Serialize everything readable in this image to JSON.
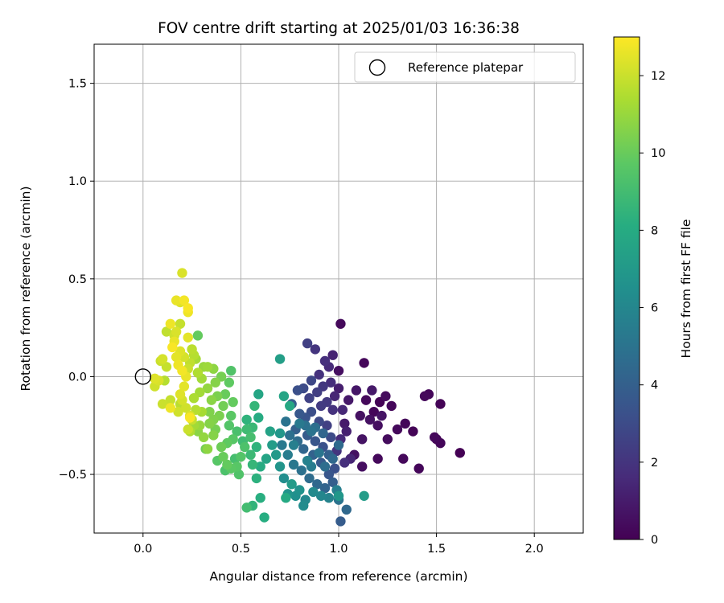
{
  "chart_data": {
    "type": "scatter",
    "title": "FOV centre drift starting at 2025/01/03 16:36:38",
    "xlabel": "Angular distance from reference (arcmin)",
    "ylabel": "Rotation from reference (arcmin)",
    "xlim": [
      -0.25,
      2.25
    ],
    "ylim": [
      -0.8,
      1.7
    ],
    "xticks": [
      "0.0",
      "0.5",
      "1.0",
      "1.5",
      "2.0"
    ],
    "xtick_values": [
      0,
      0.5,
      1.0,
      1.5,
      2.0
    ],
    "yticks": [
      "−0.5",
      "0.0",
      "0.5",
      "1.0",
      "1.5"
    ],
    "ytick_values": [
      -0.5,
      0,
      0.5,
      1.0,
      1.5
    ],
    "grid": true,
    "legend": {
      "placement": "upper-right",
      "entries": [
        {
          "label": "Reference platepar",
          "marker": "open-circle",
          "x": 0,
          "y": 0
        }
      ]
    },
    "colorbar": {
      "label": "Hours from first FF file",
      "colormap": "viridis",
      "range": [
        0,
        13
      ],
      "ticks": [
        "0",
        "2",
        "4",
        "6",
        "8",
        "10",
        "12"
      ],
      "tick_values": [
        0,
        2,
        4,
        6,
        8,
        10,
        12
      ]
    },
    "points_note_colors": "c = hours from first FF file",
    "points": [
      {
        "x": 1.01,
        "y": 0.27,
        "c": 0.3
      },
      {
        "x": 1.13,
        "y": 0.07,
        "c": 0.2
      },
      {
        "x": 1.0,
        "y": 0.03,
        "c": 0.5
      },
      {
        "x": 1.14,
        "y": -0.12,
        "c": 0.3
      },
      {
        "x": 1.18,
        "y": -0.18,
        "c": 0.2
      },
      {
        "x": 1.21,
        "y": -0.13,
        "c": 0.1
      },
      {
        "x": 1.24,
        "y": -0.1,
        "c": 0.4
      },
      {
        "x": 1.27,
        "y": -0.15,
        "c": 0.2
      },
      {
        "x": 1.3,
        "y": -0.27,
        "c": 0.3
      },
      {
        "x": 1.34,
        "y": -0.24,
        "c": 0.2
      },
      {
        "x": 1.38,
        "y": -0.28,
        "c": 0.1
      },
      {
        "x": 1.44,
        "y": -0.1,
        "c": 0.3
      },
      {
        "x": 1.46,
        "y": -0.09,
        "c": 0.2
      },
      {
        "x": 1.49,
        "y": -0.31,
        "c": 0.3
      },
      {
        "x": 1.5,
        "y": -0.32,
        "c": 0.1
      },
      {
        "x": 1.52,
        "y": -0.34,
        "c": 0.2
      },
      {
        "x": 1.52,
        "y": -0.14,
        "c": 0.1
      },
      {
        "x": 1.62,
        "y": -0.39,
        "c": 0.0
      },
      {
        "x": 1.41,
        "y": -0.47,
        "c": 0.2
      },
      {
        "x": 1.33,
        "y": -0.42,
        "c": 0.3
      },
      {
        "x": 1.25,
        "y": -0.32,
        "c": 0.4
      },
      {
        "x": 1.2,
        "y": -0.25,
        "c": 0.5
      },
      {
        "x": 1.16,
        "y": -0.22,
        "c": 0.6
      },
      {
        "x": 1.12,
        "y": -0.32,
        "c": 0.7
      },
      {
        "x": 1.09,
        "y": -0.07,
        "c": 0.8
      },
      {
        "x": 1.05,
        "y": -0.12,
        "c": 0.9
      },
      {
        "x": 1.03,
        "y": -0.24,
        "c": 1.0
      },
      {
        "x": 1.08,
        "y": -0.4,
        "c": 0.6
      },
      {
        "x": 1.12,
        "y": -0.46,
        "c": 0.5
      },
      {
        "x": 1.0,
        "y": -0.06,
        "c": 1.1
      },
      {
        "x": 1.2,
        "y": -0.42,
        "c": 0.3
      },
      {
        "x": 1.22,
        "y": -0.2,
        "c": 0.7
      },
      {
        "x": 1.17,
        "y": -0.07,
        "c": 0.9
      },
      {
        "x": 1.11,
        "y": -0.2,
        "c": 0.6
      },
      {
        "x": 0.97,
        "y": 0.11,
        "c": 1.3
      },
      {
        "x": 0.95,
        "y": 0.05,
        "c": 1.6
      },
      {
        "x": 0.93,
        "y": 0.08,
        "c": 1.8
      },
      {
        "x": 0.88,
        "y": 0.14,
        "c": 2.0
      },
      {
        "x": 0.84,
        "y": 0.17,
        "c": 2.5
      },
      {
        "x": 0.9,
        "y": 0.01,
        "c": 1.9
      },
      {
        "x": 0.92,
        "y": -0.05,
        "c": 2.1
      },
      {
        "x": 0.96,
        "y": -0.03,
        "c": 1.7
      },
      {
        "x": 0.98,
        "y": -0.1,
        "c": 1.4
      },
      {
        "x": 0.94,
        "y": -0.13,
        "c": 2.2
      },
      {
        "x": 0.89,
        "y": -0.08,
        "c": 2.4
      },
      {
        "x": 0.86,
        "y": -0.02,
        "c": 2.8
      },
      {
        "x": 0.82,
        "y": -0.06,
        "c": 3.0
      },
      {
        "x": 0.79,
        "y": -0.07,
        "c": 3.2
      },
      {
        "x": 0.85,
        "y": -0.11,
        "c": 2.6
      },
      {
        "x": 0.91,
        "y": -0.15,
        "c": 2.3
      },
      {
        "x": 0.97,
        "y": -0.17,
        "c": 1.9
      },
      {
        "x": 1.02,
        "y": -0.17,
        "c": 1.5
      },
      {
        "x": 1.04,
        "y": -0.28,
        "c": 1.2
      },
      {
        "x": 1.01,
        "y": -0.32,
        "c": 1.6
      },
      {
        "x": 0.99,
        "y": -0.38,
        "c": 2.0
      },
      {
        "x": 1.06,
        "y": -0.42,
        "c": 1.4
      },
      {
        "x": 1.03,
        "y": -0.44,
        "c": 1.8
      },
      {
        "x": 0.94,
        "y": -0.25,
        "c": 2.5
      },
      {
        "x": 0.9,
        "y": -0.23,
        "c": 2.9
      },
      {
        "x": 0.86,
        "y": -0.18,
        "c": 3.1
      },
      {
        "x": 0.83,
        "y": -0.21,
        "c": 3.4
      },
      {
        "x": 0.8,
        "y": -0.19,
        "c": 3.6
      },
      {
        "x": 0.76,
        "y": -0.14,
        "c": 3.9
      },
      {
        "x": 0.78,
        "y": -0.27,
        "c": 4.0
      },
      {
        "x": 0.84,
        "y": -0.3,
        "c": 3.8
      },
      {
        "x": 0.88,
        "y": -0.33,
        "c": 3.5
      },
      {
        "x": 0.92,
        "y": -0.36,
        "c": 3.3
      },
      {
        "x": 0.96,
        "y": -0.31,
        "c": 3.0
      },
      {
        "x": 0.98,
        "y": -0.47,
        "c": 3.2
      },
      {
        "x": 0.95,
        "y": -0.5,
        "c": 3.5
      },
      {
        "x": 0.91,
        "y": -0.44,
        "c": 3.7
      },
      {
        "x": 0.87,
        "y": -0.4,
        "c": 4.1
      },
      {
        "x": 0.82,
        "y": -0.37,
        "c": 4.3
      },
      {
        "x": 0.79,
        "y": -0.33,
        "c": 4.6
      },
      {
        "x": 0.75,
        "y": -0.3,
        "c": 4.8
      },
      {
        "x": 0.73,
        "y": -0.23,
        "c": 5.0
      },
      {
        "x": 0.71,
        "y": -0.35,
        "c": 5.3
      },
      {
        "x": 0.74,
        "y": -0.4,
        "c": 5.5
      },
      {
        "x": 0.77,
        "y": -0.45,
        "c": 5.2
      },
      {
        "x": 0.81,
        "y": -0.48,
        "c": 4.9
      },
      {
        "x": 0.85,
        "y": -0.52,
        "c": 4.6
      },
      {
        "x": 0.89,
        "y": -0.55,
        "c": 4.4
      },
      {
        "x": 0.93,
        "y": -0.57,
        "c": 4.2
      },
      {
        "x": 0.97,
        "y": -0.54,
        "c": 3.9
      },
      {
        "x": 0.99,
        "y": -0.58,
        "c": 5.6
      },
      {
        "x": 0.95,
        "y": -0.62,
        "c": 5.8
      },
      {
        "x": 0.91,
        "y": -0.61,
        "c": 6.0
      },
      {
        "x": 0.87,
        "y": -0.59,
        "c": 6.2
      },
      {
        "x": 0.83,
        "y": -0.63,
        "c": 6.1
      },
      {
        "x": 0.82,
        "y": -0.66,
        "c": 6.3
      },
      {
        "x": 0.78,
        "y": -0.61,
        "c": 6.5
      },
      {
        "x": 0.74,
        "y": -0.6,
        "c": 6.7
      },
      {
        "x": 0.72,
        "y": -0.52,
        "c": 6.4
      },
      {
        "x": 0.7,
        "y": -0.46,
        "c": 6.8
      },
      {
        "x": 0.68,
        "y": -0.4,
        "c": 7.0
      },
      {
        "x": 0.66,
        "y": -0.35,
        "c": 7.2
      },
      {
        "x": 0.65,
        "y": -0.28,
        "c": 7.5
      },
      {
        "x": 0.7,
        "y": -0.29,
        "c": 6.9
      },
      {
        "x": 0.72,
        "y": -0.1,
        "c": 7.6
      },
      {
        "x": 0.7,
        "y": 0.09,
        "c": 7.3
      },
      {
        "x": 0.75,
        "y": -0.15,
        "c": 7.8
      },
      {
        "x": 0.73,
        "y": -0.62,
        "c": 7.9
      },
      {
        "x": 0.76,
        "y": -0.55,
        "c": 7.1
      },
      {
        "x": 0.8,
        "y": -0.58,
        "c": 6.6
      },
      {
        "x": 0.84,
        "y": -0.43,
        "c": 5.7
      },
      {
        "x": 0.86,
        "y": -0.46,
        "c": 5.4
      },
      {
        "x": 0.9,
        "y": -0.39,
        "c": 5.1
      },
      {
        "x": 0.93,
        "y": -0.46,
        "c": 4.7
      },
      {
        "x": 1.0,
        "y": -0.35,
        "c": 4.5
      },
      {
        "x": 1.0,
        "y": -0.63,
        "c": 5.0
      },
      {
        "x": 1.01,
        "y": -0.74,
        "c": 3.8
      },
      {
        "x": 1.04,
        "y": -0.68,
        "c": 4.4
      },
      {
        "x": 1.0,
        "y": -0.61,
        "c": 6.9
      },
      {
        "x": 1.13,
        "y": -0.61,
        "c": 7.2
      },
      {
        "x": 0.92,
        "y": -0.29,
        "c": 4.3
      },
      {
        "x": 0.88,
        "y": -0.26,
        "c": 4.7
      },
      {
        "x": 0.83,
        "y": -0.25,
        "c": 4.9
      },
      {
        "x": 0.8,
        "y": -0.24,
        "c": 5.3
      },
      {
        "x": 0.77,
        "y": -0.35,
        "c": 5.6
      },
      {
        "x": 0.86,
        "y": -0.28,
        "c": 5.0
      },
      {
        "x": 0.95,
        "y": -0.4,
        "c": 4.0
      },
      {
        "x": 0.97,
        "y": -0.42,
        "c": 4.4
      },
      {
        "x": 0.63,
        "y": -0.42,
        "c": 7.6
      },
      {
        "x": 0.62,
        "y": -0.72,
        "c": 8.1
      },
      {
        "x": 0.6,
        "y": -0.62,
        "c": 8.2
      },
      {
        "x": 0.56,
        "y": -0.66,
        "c": 8.5
      },
      {
        "x": 0.53,
        "y": -0.67,
        "c": 9.0
      },
      {
        "x": 0.58,
        "y": -0.52,
        "c": 8.3
      },
      {
        "x": 0.6,
        "y": -0.46,
        "c": 8.0
      },
      {
        "x": 0.58,
        "y": -0.36,
        "c": 8.4
      },
      {
        "x": 0.59,
        "y": -0.21,
        "c": 8.0
      },
      {
        "x": 0.59,
        "y": -0.09,
        "c": 7.7
      },
      {
        "x": 0.57,
        "y": -0.15,
        "c": 8.6
      },
      {
        "x": 0.56,
        "y": -0.26,
        "c": 8.7
      },
      {
        "x": 0.53,
        "y": -0.27,
        "c": 8.9
      },
      {
        "x": 0.55,
        "y": -0.31,
        "c": 9.1
      },
      {
        "x": 0.52,
        "y": -0.36,
        "c": 9.3
      },
      {
        "x": 0.5,
        "y": -0.41,
        "c": 9.5
      },
      {
        "x": 0.55,
        "y": -0.4,
        "c": 8.8
      },
      {
        "x": 0.56,
        "y": -0.45,
        "c": 8.6
      },
      {
        "x": 0.48,
        "y": -0.46,
        "c": 9.6
      },
      {
        "x": 0.49,
        "y": -0.5,
        "c": 9.4
      },
      {
        "x": 0.45,
        "y": -0.47,
        "c": 9.7
      },
      {
        "x": 0.43,
        "y": -0.45,
        "c": 9.9
      },
      {
        "x": 0.41,
        "y": -0.41,
        "c": 10.0
      },
      {
        "x": 0.4,
        "y": -0.36,
        "c": 10.1
      },
      {
        "x": 0.43,
        "y": -0.34,
        "c": 9.8
      },
      {
        "x": 0.46,
        "y": -0.32,
        "c": 9.6
      },
      {
        "x": 0.44,
        "y": -0.25,
        "c": 9.5
      },
      {
        "x": 0.45,
        "y": -0.2,
        "c": 9.7
      },
      {
        "x": 0.46,
        "y": -0.13,
        "c": 9.9
      },
      {
        "x": 0.42,
        "y": -0.09,
        "c": 10.0
      },
      {
        "x": 0.41,
        "y": -0.15,
        "c": 10.2
      },
      {
        "x": 0.39,
        "y": -0.2,
        "c": 10.4
      },
      {
        "x": 0.37,
        "y": -0.27,
        "c": 10.3
      },
      {
        "x": 0.36,
        "y": -0.3,
        "c": 10.6
      },
      {
        "x": 0.33,
        "y": -0.37,
        "c": 10.8
      },
      {
        "x": 0.31,
        "y": -0.31,
        "c": 10.9
      },
      {
        "x": 0.29,
        "y": -0.25,
        "c": 11.0
      },
      {
        "x": 0.34,
        "y": -0.18,
        "c": 10.5
      },
      {
        "x": 0.35,
        "y": -0.12,
        "c": 10.7
      },
      {
        "x": 0.33,
        "y": -0.06,
        "c": 10.9
      },
      {
        "x": 0.37,
        "y": -0.03,
        "c": 10.6
      },
      {
        "x": 0.4,
        "y": 0.0,
        "c": 10.3
      },
      {
        "x": 0.45,
        "y": 0.03,
        "c": 9.4
      },
      {
        "x": 0.44,
        "y": -0.03,
        "c": 9.8
      },
      {
        "x": 0.36,
        "y": 0.04,
        "c": 10.8
      },
      {
        "x": 0.33,
        "y": 0.05,
        "c": 11.1
      },
      {
        "x": 0.3,
        "y": -0.01,
        "c": 11.2
      },
      {
        "x": 0.28,
        "y": 0.02,
        "c": 11.5
      },
      {
        "x": 0.27,
        "y": 0.09,
        "c": 11.3
      },
      {
        "x": 0.28,
        "y": 0.21,
        "c": 9.9
      },
      {
        "x": 0.25,
        "y": 0.14,
        "c": 11.7
      },
      {
        "x": 0.24,
        "y": 0.07,
        "c": 11.8
      },
      {
        "x": 0.26,
        "y": -0.11,
        "c": 11.4
      },
      {
        "x": 0.27,
        "y": -0.17,
        "c": 11.6
      },
      {
        "x": 0.29,
        "y": -0.08,
        "c": 11.2
      },
      {
        "x": 0.25,
        "y": -0.22,
        "c": 11.9
      },
      {
        "x": 0.23,
        "y": -0.27,
        "c": 12.0
      },
      {
        "x": 0.24,
        "y": -0.2,
        "c": 12.3
      },
      {
        "x": 0.22,
        "y": -0.16,
        "c": 12.1
      },
      {
        "x": 0.2,
        "y": -0.12,
        "c": 12.2
      },
      {
        "x": 0.19,
        "y": -0.09,
        "c": 12.4
      },
      {
        "x": 0.21,
        "y": -0.05,
        "c": 12.5
      },
      {
        "x": 0.22,
        "y": 0.0,
        "c": 12.6
      },
      {
        "x": 0.2,
        "y": 0.03,
        "c": 12.8
      },
      {
        "x": 0.18,
        "y": 0.06,
        "c": 12.7
      },
      {
        "x": 0.17,
        "y": 0.1,
        "c": 12.5
      },
      {
        "x": 0.19,
        "y": 0.13,
        "c": 12.4
      },
      {
        "x": 0.21,
        "y": 0.1,
        "c": 12.2
      },
      {
        "x": 0.23,
        "y": 0.04,
        "c": 12.0
      },
      {
        "x": 0.16,
        "y": 0.18,
        "c": 12.6
      },
      {
        "x": 0.15,
        "y": 0.15,
        "c": 12.9
      },
      {
        "x": 0.17,
        "y": 0.23,
        "c": 12.3
      },
      {
        "x": 0.14,
        "y": 0.27,
        "c": 12.7
      },
      {
        "x": 0.12,
        "y": 0.23,
        "c": 11.8
      },
      {
        "x": 0.16,
        "y": 0.21,
        "c": 12.1
      },
      {
        "x": 0.19,
        "y": 0.27,
        "c": 11.9
      },
      {
        "x": 0.23,
        "y": 0.2,
        "c": 12.5
      },
      {
        "x": 0.17,
        "y": 0.39,
        "c": 12.6
      },
      {
        "x": 0.19,
        "y": 0.38,
        "c": 12.4
      },
      {
        "x": 0.21,
        "y": 0.39,
        "c": 12.8
      },
      {
        "x": 0.23,
        "y": 0.35,
        "c": 12.9
      },
      {
        "x": 0.23,
        "y": 0.33,
        "c": 12.7
      },
      {
        "x": 0.2,
        "y": 0.53,
        "c": 12.3
      },
      {
        "x": 0.1,
        "y": 0.09,
        "c": 12.2
      },
      {
        "x": 0.09,
        "y": 0.08,
        "c": 12.0
      },
      {
        "x": 0.12,
        "y": 0.05,
        "c": 11.9
      },
      {
        "x": 0.08,
        "y": -0.02,
        "c": 12.3
      },
      {
        "x": 0.06,
        "y": -0.01,
        "c": 12.4
      },
      {
        "x": 0.06,
        "y": -0.05,
        "c": 12.1
      },
      {
        "x": 0.11,
        "y": -0.02,
        "c": 11.6
      },
      {
        "x": 0.1,
        "y": -0.14,
        "c": 12.0
      },
      {
        "x": 0.14,
        "y": -0.12,
        "c": 11.9
      },
      {
        "x": 0.14,
        "y": -0.16,
        "c": 12.7
      },
      {
        "x": 0.18,
        "y": -0.18,
        "c": 12.1
      },
      {
        "x": 0.19,
        "y": -0.14,
        "c": 11.7
      },
      {
        "x": 0.24,
        "y": -0.28,
        "c": 11.5
      },
      {
        "x": 0.26,
        "y": -0.25,
        "c": 11.2
      },
      {
        "x": 0.24,
        "y": -0.21,
        "c": 12.9
      },
      {
        "x": 0.28,
        "y": -0.28,
        "c": 10.7
      },
      {
        "x": 0.32,
        "y": -0.37,
        "c": 10.2
      },
      {
        "x": 0.38,
        "y": -0.43,
        "c": 9.6
      },
      {
        "x": 0.42,
        "y": -0.48,
        "c": 9.3
      },
      {
        "x": 0.47,
        "y": -0.42,
        "c": 9.1
      },
      {
        "x": 0.51,
        "y": -0.33,
        "c": 8.9
      },
      {
        "x": 0.53,
        "y": -0.22,
        "c": 8.4
      },
      {
        "x": 0.48,
        "y": -0.28,
        "c": 9.2
      },
      {
        "x": 0.38,
        "y": -0.1,
        "c": 10.4
      },
      {
        "x": 0.31,
        "y": 0.05,
        "c": 11.0
      },
      {
        "x": 0.26,
        "y": 0.11,
        "c": 11.6
      },
      {
        "x": 0.36,
        "y": -0.22,
        "c": 10.5
      },
      {
        "x": 0.3,
        "y": -0.18,
        "c": 11.3
      },
      {
        "x": 0.34,
        "y": -0.24,
        "c": 10.6
      }
    ]
  }
}
